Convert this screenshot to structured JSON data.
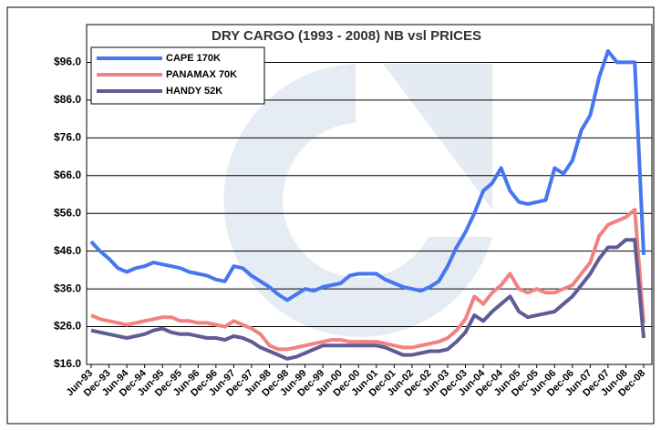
{
  "chart_data": {
    "type": "line",
    "title": "DRY CARGO (1993 - 2008) NB vsl PRICES",
    "categories": [
      "Jun-93",
      null,
      "Dec-93",
      null,
      "Jun-94",
      null,
      "Dec-94",
      null,
      "Jun-95",
      null,
      "Dec-95",
      null,
      "Jun-96",
      null,
      "Dec-96",
      null,
      "Jun-97",
      null,
      "Dec-97",
      null,
      "Jun-98",
      null,
      "Dec-98",
      null,
      "Jun-99",
      null,
      "Dec-99",
      null,
      "Jun-00",
      null,
      "Dec-00",
      null,
      "Jun-01",
      null,
      "Dec-01",
      null,
      "Jun-02",
      null,
      "Dec-02",
      null,
      "Jun-03",
      null,
      "Dec-03",
      null,
      "Jun-04",
      null,
      "Dec-04",
      null,
      "Jun-05",
      null,
      "Dec-05",
      null,
      "Jun-06",
      null,
      "Dec-06",
      null,
      "Jun-07",
      null,
      "Dec-07",
      null,
      "Jun-08",
      null,
      "Dec-08"
    ],
    "series": [
      {
        "name": "CAPE 170K",
        "color": "#4677f0",
        "values": [
          48.5,
          46,
          44,
          41.5,
          40.5,
          41.5,
          42,
          43,
          42.5,
          42,
          41.5,
          40.5,
          40,
          39.5,
          38.5,
          38,
          42,
          41.5,
          39.5,
          38,
          36.5,
          34.5,
          33,
          34.5,
          36,
          35.5,
          36.5,
          37,
          37.5,
          39.5,
          40,
          40,
          40,
          38.5,
          37.5,
          36.5,
          36,
          35.5,
          36.5,
          38,
          42,
          47,
          51,
          56,
          62,
          64,
          68,
          62,
          59,
          58.5,
          59,
          59.5,
          68,
          66.5,
          70,
          78,
          82,
          92,
          99,
          96,
          96,
          96,
          45
        ]
      },
      {
        "name": "PANAMAX 70K",
        "color": "#f28282",
        "values": [
          29,
          28,
          27.5,
          27,
          26.5,
          27,
          27.5,
          28,
          28.5,
          28.5,
          27.5,
          27.5,
          27,
          27,
          26.5,
          26,
          27.5,
          26.5,
          25.5,
          24,
          21,
          20,
          20,
          20.5,
          21,
          21.5,
          22,
          22.5,
          22.5,
          22,
          22,
          22,
          22,
          21.5,
          21,
          20.5,
          20.5,
          21,
          21.5,
          22,
          23,
          25,
          28,
          34,
          32,
          35,
          37,
          40,
          36,
          35,
          36,
          35,
          35,
          36,
          37,
          40,
          43,
          50,
          53,
          54,
          55,
          57,
          27
        ]
      },
      {
        "name": "HANDY 52K",
        "color": "#5e5c94",
        "values": [
          25,
          24.5,
          24,
          23.5,
          23,
          23.5,
          24,
          25,
          25.5,
          24.5,
          24,
          24,
          23.5,
          23,
          23,
          22.5,
          23.5,
          23,
          22,
          20.5,
          19.5,
          18.5,
          17.5,
          18,
          19,
          20,
          21,
          21,
          21,
          21,
          21,
          21,
          21,
          20.5,
          19.5,
          18.5,
          18.5,
          19,
          19.5,
          19.5,
          20,
          22,
          24.5,
          29,
          27.5,
          30,
          32,
          34,
          30,
          28.5,
          29,
          29.5,
          30,
          32,
          34,
          37,
          40,
          44,
          47,
          47,
          49,
          49,
          23
        ]
      }
    ],
    "ylim": [
      16,
      106
    ],
    "yticks": [
      {
        "value": 16,
        "label": "$16.0"
      },
      {
        "value": 26,
        "label": "$26.0"
      },
      {
        "value": 36,
        "label": "$36.0"
      },
      {
        "value": 46,
        "label": "$46.0"
      },
      {
        "value": 56,
        "label": "$56.0"
      },
      {
        "value": 66,
        "label": "$66.0"
      },
      {
        "value": 76,
        "label": "$76.0"
      },
      {
        "value": 86,
        "label": "$86.0"
      },
      {
        "value": 96,
        "label": "$96.0"
      }
    ],
    "grid": true,
    "legend": "top-left"
  }
}
